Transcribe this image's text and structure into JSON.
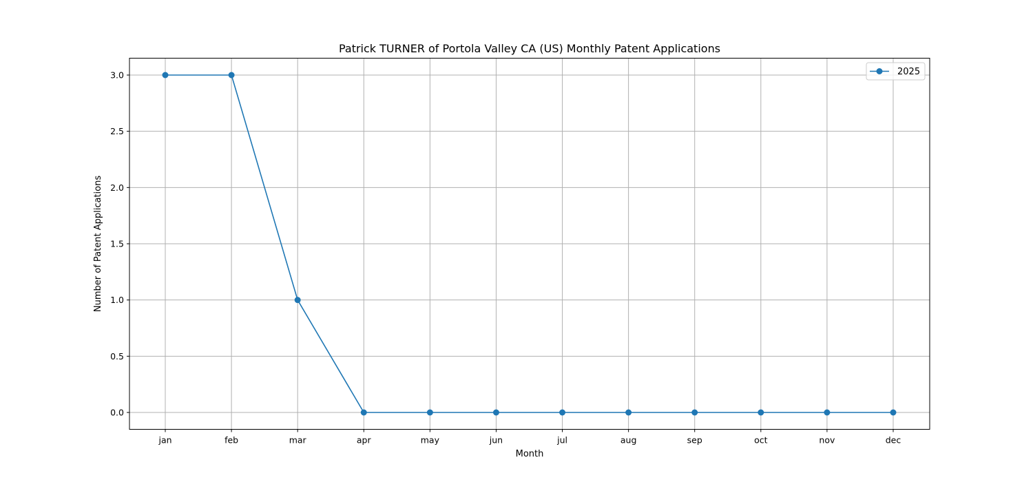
{
  "chart_data": {
    "type": "line",
    "title": "Patrick TURNER of Portola Valley CA (US) Monthly Patent Applications",
    "xlabel": "Month",
    "ylabel": "Number of Patent Applications",
    "categories": [
      "jan",
      "feb",
      "mar",
      "apr",
      "may",
      "jun",
      "jul",
      "aug",
      "sep",
      "oct",
      "nov",
      "dec"
    ],
    "yticks": [
      "0.0",
      "0.5",
      "1.0",
      "1.5",
      "2.0",
      "2.5",
      "3.0"
    ],
    "ylim": [
      -0.15,
      3.15
    ],
    "grid": true,
    "legend_position": "top-right",
    "series": [
      {
        "name": "2025",
        "color": "#1f77b4",
        "marker": "circle",
        "values": [
          3,
          3,
          1,
          0,
          0,
          0,
          0,
          0,
          0,
          0,
          0,
          0
        ]
      }
    ]
  }
}
